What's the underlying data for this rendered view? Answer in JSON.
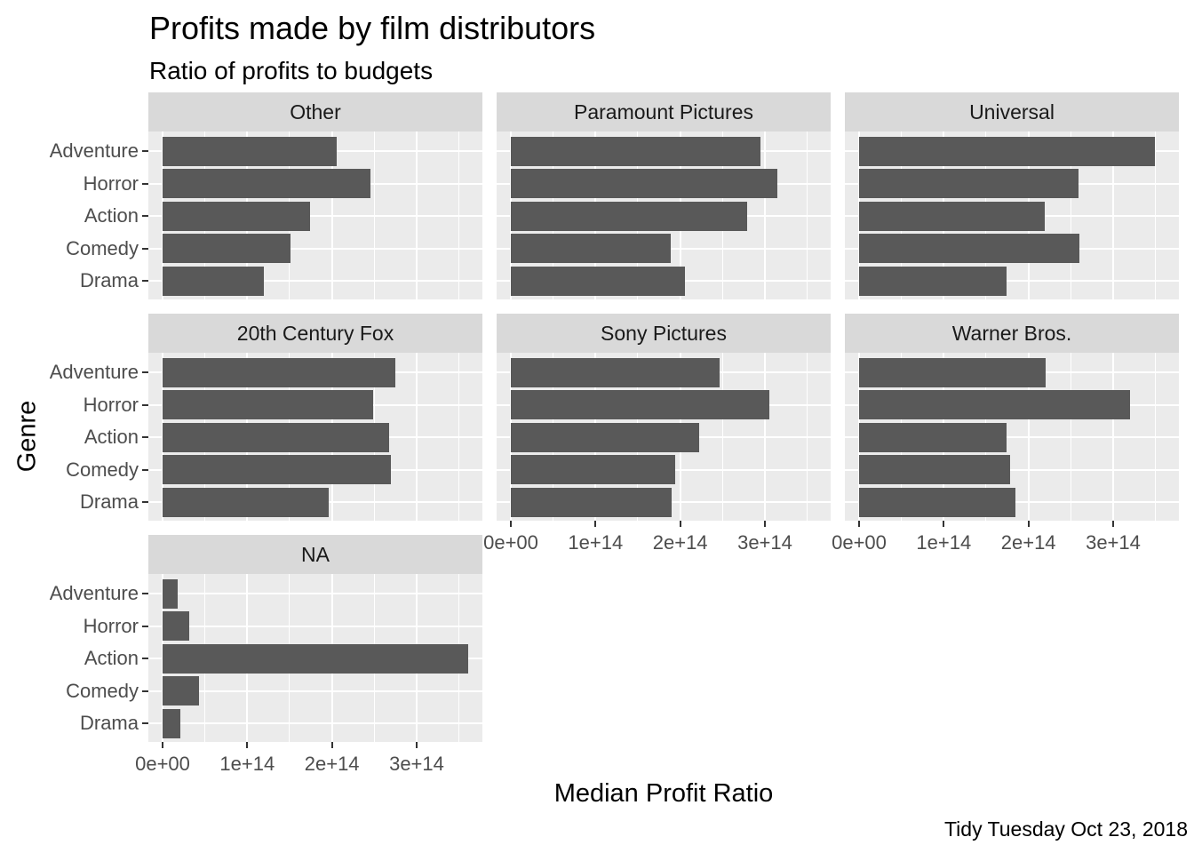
{
  "title": "Profits made by film distributors",
  "subtitle": "Ratio of profits to budgets",
  "caption": "Tidy Tuesday Oct 23, 2018",
  "chart_data": {
    "type": "bar",
    "orientation": "horizontal",
    "title": "Profits made by film distributors",
    "subtitle": "Ratio of profits to budgets",
    "xlabel": "Median Profit Ratio",
    "ylabel": "Genre",
    "grid": true,
    "legend": "none",
    "categories": [
      "Adventure",
      "Horror",
      "Action",
      "Comedy",
      "Drama"
    ],
    "x_tick_labels": [
      "0e+00",
      "1e+14",
      "2e+14",
      "3e+14"
    ],
    "x_tick_values": [
      0,
      100000000000000.0,
      200000000000000.0,
      300000000000000.0
    ],
    "xlim": [
      -17000000000000.0,
      378000000000000.0
    ],
    "facets": [
      {
        "label": "Other",
        "values": [
          206000000000000.0,
          245000000000000.0,
          174000000000000.0,
          151000000000000.0,
          120000000000000.0
        ]
      },
      {
        "label": "Paramount Pictures",
        "values": [
          295000000000000.0,
          315000000000000.0,
          279000000000000.0,
          189000000000000.0,
          206000000000000.0
        ]
      },
      {
        "label": "Universal",
        "values": [
          349000000000000.0,
          259000000000000.0,
          219000000000000.0,
          260000000000000.0,
          174000000000000.0
        ]
      },
      {
        "label": "20th Century Fox",
        "values": [
          275000000000000.0,
          249000000000000.0,
          267000000000000.0,
          270000000000000.0,
          196000000000000.0
        ]
      },
      {
        "label": "Sony Pictures",
        "values": [
          247000000000000.0,
          305000000000000.0,
          222000000000000.0,
          194000000000000.0,
          190000000000000.0
        ]
      },
      {
        "label": "Warner Bros.",
        "values": [
          220000000000000.0,
          320000000000000.0,
          174000000000000.0,
          178000000000000.0,
          185000000000000.0
        ]
      },
      {
        "label": "NA",
        "values": [
          18000000000000.0,
          31000000000000.0,
          361000000000000.0,
          43000000000000.0,
          21000000000000.0
        ]
      }
    ]
  },
  "colors": {
    "bar": "#595959",
    "panel_bg": "#ebebeb",
    "strip_bg": "#d9d9d9",
    "grid": "#ffffff",
    "tick_text": "#4d4d4d",
    "text": "#000000",
    "background": "#ffffff"
  }
}
